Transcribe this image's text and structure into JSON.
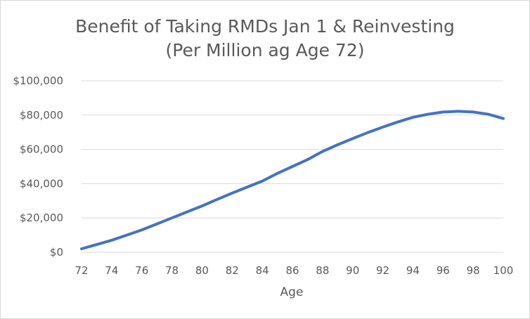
{
  "chart_data": {
    "type": "line",
    "title": "Benefit of Taking RMDs Jan 1 & Reinvesting",
    "subtitle": "(Per Million ag Age 72)",
    "xlabel": "Age",
    "ylabel": "",
    "xlim": [
      72,
      100
    ],
    "ylim": [
      0,
      100000
    ],
    "x_ticks": [
      72,
      74,
      76,
      78,
      80,
      82,
      84,
      86,
      88,
      90,
      92,
      94,
      96,
      98,
      100
    ],
    "x_tick_labels": [
      "72",
      "74",
      "76",
      "78",
      "80",
      "82",
      "84",
      "86",
      "88",
      "90",
      "92",
      "94",
      "96",
      "98",
      "100"
    ],
    "y_ticks": [
      0,
      20000,
      40000,
      60000,
      80000,
      100000
    ],
    "y_tick_labels": [
      "$0",
      "$20,000",
      "$40,000",
      "$60,000",
      "$80,000",
      "$100,000"
    ],
    "grid": true,
    "legend": "none",
    "series": [
      {
        "color": "#4472c4",
        "x": [
          72,
          73,
          74,
          75,
          76,
          77,
          78,
          79,
          80,
          81,
          82,
          83,
          84,
          85,
          86,
          87,
          88,
          89,
          90,
          91,
          92,
          93,
          94,
          95,
          96,
          97,
          98,
          99,
          100
        ],
        "y": [
          2000,
          4500,
          7000,
          10000,
          13000,
          16500,
          20000,
          23500,
          27000,
          30800,
          34500,
          38000,
          41500,
          46000,
          50000,
          54000,
          58800,
          62700,
          66300,
          69800,
          73000,
          76000,
          78700,
          80500,
          81800,
          82200,
          81800,
          80500,
          78000
        ]
      }
    ]
  }
}
